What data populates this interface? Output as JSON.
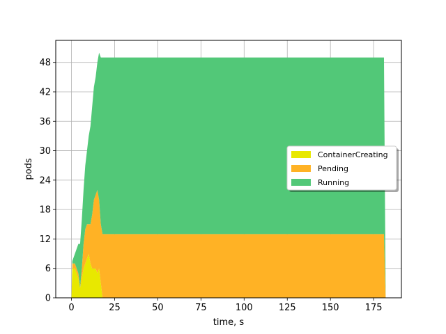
{
  "chart_data": {
    "type": "area",
    "stacked": true,
    "title": "",
    "xlabel": "time, s",
    "ylabel": "pods",
    "xlim": [
      -9.1,
      191.1
    ],
    "ylim": [
      0,
      52.5
    ],
    "xticks": [
      0,
      25,
      50,
      75,
      100,
      125,
      150,
      175
    ],
    "yticks": [
      0,
      6,
      12,
      18,
      24,
      30,
      36,
      42,
      48
    ],
    "grid": true,
    "legend_position": "center-right",
    "series": [
      {
        "name": "ContainerCreating",
        "color": "#e8e800",
        "points": [
          [
            0,
            0
          ],
          [
            0.5,
            6
          ],
          [
            2,
            6
          ],
          [
            3,
            5
          ],
          [
            4,
            4
          ],
          [
            5,
            2
          ],
          [
            6,
            4
          ],
          [
            7,
            6
          ],
          [
            8,
            7
          ],
          [
            9,
            8
          ],
          [
            10,
            9
          ],
          [
            11,
            7
          ],
          [
            12,
            6
          ],
          [
            13,
            6
          ],
          [
            14,
            6
          ],
          [
            15,
            5
          ],
          [
            16,
            6
          ],
          [
            17,
            3
          ],
          [
            18,
            0
          ],
          [
            182,
            0
          ]
        ]
      },
      {
        "name": "Pending",
        "color": "#ffb225",
        "points": [
          [
            0,
            0
          ],
          [
            0.5,
            1
          ],
          [
            2,
            1
          ],
          [
            3,
            1
          ],
          [
            4,
            1
          ],
          [
            5,
            0
          ],
          [
            6,
            2
          ],
          [
            7,
            5
          ],
          [
            8,
            7
          ],
          [
            9,
            7
          ],
          [
            10,
            6
          ],
          [
            11,
            8
          ],
          [
            12,
            11
          ],
          [
            13,
            14
          ],
          [
            14,
            15
          ],
          [
            15,
            17
          ],
          [
            16,
            14
          ],
          [
            17,
            12
          ],
          [
            18,
            13
          ],
          [
            181,
            13
          ],
          [
            182,
            0
          ]
        ]
      },
      {
        "name": "Running",
        "color": "#52c878",
        "points": [
          [
            0,
            0
          ],
          [
            1,
            1
          ],
          [
            2,
            2
          ],
          [
            3,
            4
          ],
          [
            4,
            6
          ],
          [
            5,
            9
          ],
          [
            6,
            10
          ],
          [
            7,
            11
          ],
          [
            8,
            13
          ],
          [
            9,
            15
          ],
          [
            10,
            18
          ],
          [
            11,
            20
          ],
          [
            12,
            22
          ],
          [
            13,
            23
          ],
          [
            14,
            24
          ],
          [
            15,
            26
          ],
          [
            16,
            30
          ],
          [
            17,
            34
          ],
          [
            18,
            36
          ],
          [
            181,
            36
          ],
          [
            182,
            0
          ]
        ]
      }
    ]
  }
}
